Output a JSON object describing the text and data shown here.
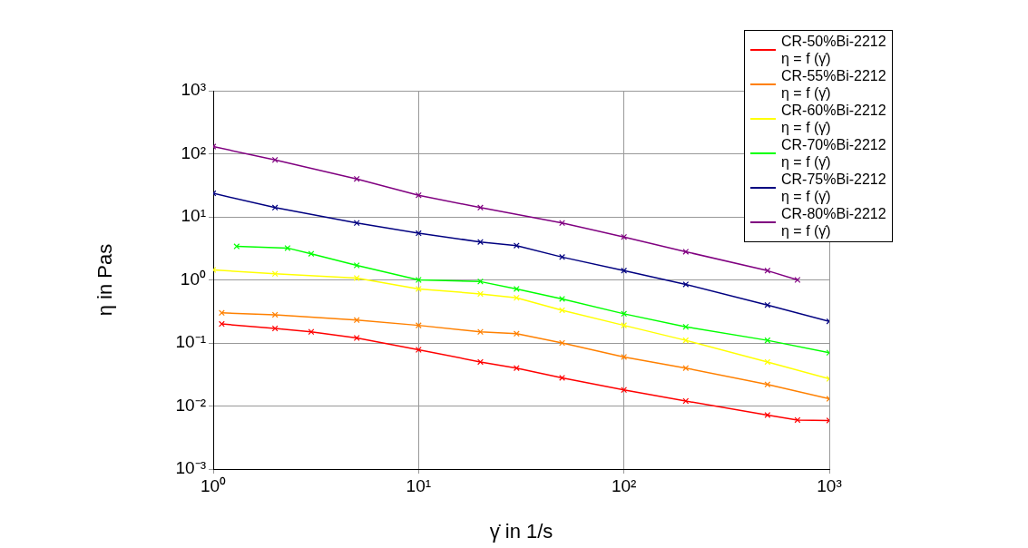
{
  "chart_data": {
    "type": "line",
    "xlabel": "γ̇ in 1/s",
    "ylabel": "η in Pas",
    "log": "xy",
    "grid": true,
    "legend": "top right",
    "marker": "cross",
    "line_style": "solid",
    "xlim": [
      1,
      1000
    ],
    "ylim": [
      0.001,
      1000
    ],
    "xticks": [
      {
        "value": 1,
        "label": "10⁰"
      },
      {
        "value": 10,
        "label": "10¹"
      },
      {
        "value": 100,
        "label": "10²"
      },
      {
        "value": 1000,
        "label": "10³"
      }
    ],
    "yticks": [
      {
        "value": 0.001,
        "label": "10⁻³"
      },
      {
        "value": 0.01,
        "label": "10⁻²"
      },
      {
        "value": 0.1,
        "label": "10⁻¹"
      },
      {
        "value": 1,
        "label": "10⁰"
      },
      {
        "value": 10,
        "label": "10¹"
      },
      {
        "value": 100,
        "label": "10²"
      },
      {
        "value": 1000,
        "label": "10³"
      }
    ],
    "series": [
      {
        "name": "CR-50%Bi-2212\nη = f (γ̇)",
        "color": "#ff0000",
        "x": [
          1.1,
          2,
          3,
          5,
          10,
          20,
          30,
          50,
          100,
          200,
          500,
          700,
          1000
        ],
        "values": [
          0.2,
          0.17,
          0.15,
          0.12,
          0.078,
          0.05,
          0.04,
          0.028,
          0.018,
          0.012,
          0.0072,
          0.006,
          0.0059
        ]
      },
      {
        "name": "CR-55%Bi-2212\nη = f (γ̇)",
        "color": "#ff8000",
        "x": [
          1.1,
          2,
          5,
          10,
          20,
          30,
          50,
          100,
          200,
          500,
          1000
        ],
        "values": [
          0.3,
          0.28,
          0.23,
          0.19,
          0.15,
          0.14,
          0.1,
          0.06,
          0.04,
          0.022,
          0.013
        ]
      },
      {
        "name": "CR-60%Bi-2212\nη = f (γ̇)",
        "color": "#ffff00",
        "x": [
          1,
          2,
          5,
          10,
          20,
          30,
          50,
          100,
          200,
          500,
          1000
        ],
        "values": [
          1.44,
          1.25,
          1.07,
          0.72,
          0.6,
          0.52,
          0.33,
          0.19,
          0.11,
          0.05,
          0.027
        ]
      },
      {
        "name": "CR-70%Bi-2212\nη = f (γ̇)",
        "color": "#00ff00",
        "x": [
          1.3,
          2.3,
          3,
          5,
          10,
          20,
          30,
          50,
          100,
          200,
          500,
          1000
        ],
        "values": [
          3.4,
          3.2,
          2.6,
          1.7,
          1.0,
          0.94,
          0.72,
          0.5,
          0.29,
          0.18,
          0.11,
          0.07
        ]
      },
      {
        "name": "CR-75%Bi-2212\nη = f (γ̇)",
        "color": "#000080",
        "x": [
          1,
          2,
          5,
          10,
          20,
          30,
          50,
          100,
          200,
          500,
          1000
        ],
        "values": [
          23.6,
          14,
          8,
          5.5,
          4,
          3.5,
          2.3,
          1.4,
          0.85,
          0.4,
          0.22
        ]
      },
      {
        "name": "CR-80%Bi-2212\nη = f (γ̇)",
        "color": "#800080",
        "x": [
          1,
          2,
          5,
          10,
          20,
          50,
          100,
          200,
          500,
          700
        ],
        "values": [
          130,
          80,
          40,
          22,
          14,
          8,
          4.8,
          2.8,
          1.4,
          1.0
        ]
      }
    ]
  }
}
